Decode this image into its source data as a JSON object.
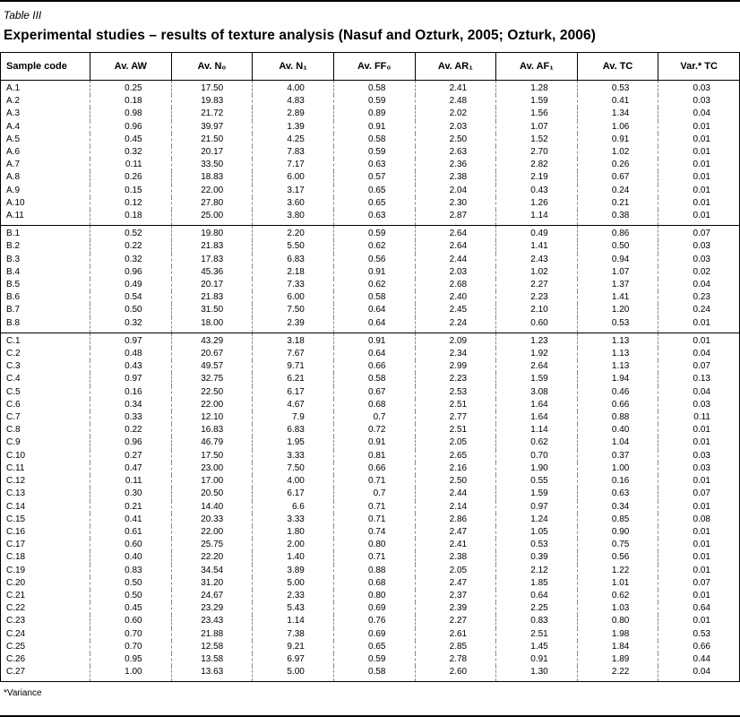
{
  "page": {
    "table_label": "Table III",
    "title": "Experimental studies – results of texture analysis (Nasuf and Ozturk, 2005; Ozturk, 2006)",
    "footnote": "*Variance"
  },
  "table": {
    "columns": [
      "Sample code",
      "Av. AW",
      "Av. N₀",
      "Av. N₁",
      "Av. FF₀",
      "Av. AR₁",
      "Av. AF₁",
      "Av. TC",
      "Var.* TC"
    ],
    "groups": [
      {
        "name": "A",
        "rows": [
          [
            "A.1",
            "0.25",
            "17.50",
            "4.00",
            "0.58",
            "2.41",
            "1.28",
            "0.53",
            "0.03"
          ],
          [
            "A.2",
            "0.18",
            "19.83",
            "4.83",
            "0.59",
            "2.48",
            "1.59",
            "0.41",
            "0.03"
          ],
          [
            "A.3",
            "0.98",
            "21.72",
            "2.89",
            "0.89",
            "2.02",
            "1.56",
            "1.34",
            "0.04"
          ],
          [
            "A.4",
            "0.96",
            "39.97",
            "1.39",
            "0.91",
            "2.03",
            "1.07",
            "1.06",
            "0.01"
          ],
          [
            "A.5",
            "0.45",
            "21.50",
            "4.25",
            "0.58",
            "2.50",
            "1.52",
            "0.91",
            "0.01"
          ],
          [
            "A.6",
            "0.32",
            "20.17",
            "7.83",
            "0.59",
            "2.63",
            "2.70",
            "1.02",
            "0.01"
          ],
          [
            "A.7",
            "0.11",
            "33.50",
            "7.17",
            "0.63",
            "2.36",
            "2.82",
            "0.26",
            "0.01"
          ],
          [
            "A.8",
            "0.26",
            "18.83",
            "6.00",
            "0.57",
            "2.38",
            "2.19",
            "0.67",
            "0.01"
          ],
          [
            "A.9",
            "0.15",
            "22.00",
            "3.17",
            "0.65",
            "2.04",
            "0.43",
            "0.24",
            "0.01"
          ],
          [
            "A.10",
            "0.12",
            "27.80",
            "3.60",
            "0.65",
            "2.30",
            "1.26",
            "0.21",
            "0.01"
          ],
          [
            "A.11",
            "0.18",
            "25.00",
            "3.80",
            "0.63",
            "2.87",
            "1.14",
            "0.38",
            "0.01"
          ]
        ]
      },
      {
        "name": "B",
        "rows": [
          [
            "B.1",
            "0.52",
            "19.80",
            "2.20",
            "0.59",
            "2.64",
            "0.49",
            "0.86",
            "0.07"
          ],
          [
            "B.2",
            "0.22",
            "21.83",
            "5.50",
            "0.62",
            "2.64",
            "1.41",
            "0.50",
            "0.03"
          ],
          [
            "B.3",
            "0.32",
            "17.83",
            "6.83",
            "0.56",
            "2.44",
            "2.43",
            "0.94",
            "0.03"
          ],
          [
            "B.4",
            "0.96",
            "45.36",
            "2.18",
            "0.91",
            "2.03",
            "1.02",
            "1.07",
            "0.02"
          ],
          [
            "B.5",
            "0.49",
            "20.17",
            "7.33",
            "0.62",
            "2.68",
            "2.27",
            "1.37",
            "0.04"
          ],
          [
            "B.6",
            "0.54",
            "21.83",
            "6.00",
            "0.58",
            "2.40",
            "2.23",
            "1.41",
            "0.23"
          ],
          [
            "B.7",
            "0.50",
            "31.50",
            "7.50",
            "0.64",
            "2.45",
            "2.10",
            "1.20",
            "0.24"
          ],
          [
            "B.8",
            "0.32",
            "18.00",
            "2.39",
            "0.64",
            "2.24",
            "0.60",
            "0.53",
            "0.01"
          ]
        ]
      },
      {
        "name": "C",
        "rows": [
          [
            "C.1",
            "0.97",
            "43.29",
            "3.18",
            "0.91",
            "2.09",
            "1.23",
            "1.13",
            "0.01"
          ],
          [
            "C.2",
            "0.48",
            "20.67",
            "7.67",
            "0.64",
            "2.34",
            "1.92",
            "1.13",
            "0.04"
          ],
          [
            "C.3",
            "0.43",
            "49.57",
            "9.71",
            "0.66",
            "2.99",
            "2.64",
            "1.13",
            "0.07"
          ],
          [
            "C.4",
            "0.97",
            "32.75",
            "6.21",
            "0.58",
            "2.23",
            "1.59",
            "1.94",
            "0.13"
          ],
          [
            "C.5",
            "0.16",
            "22.50",
            "6.17",
            "0.67",
            "2.53",
            "3.08",
            "0.46",
            "0.04"
          ],
          [
            "C.6",
            "0.34",
            "22.00",
            "4.67",
            "0.68",
            "2.51",
            "1.64",
            "0.66",
            "0.03"
          ],
          [
            "C.7",
            "0.33",
            "12.10",
            "7.9",
            "0.7",
            "2.77",
            "1.64",
            "0.88",
            "0.11"
          ],
          [
            "C.8",
            "0.22",
            "16.83",
            "6.83",
            "0.72",
            "2.51",
            "1.14",
            "0.40",
            "0.01"
          ],
          [
            "C.9",
            "0.96",
            "46.79",
            "1.95",
            "0.91",
            "2.05",
            "0.62",
            "1.04",
            "0.01"
          ],
          [
            "C.10",
            "0.27",
            "17.50",
            "3.33",
            "0.81",
            "2.65",
            "0.70",
            "0.37",
            "0.03"
          ],
          [
            "C.11",
            "0.47",
            "23.00",
            "7.50",
            "0.66",
            "2.16",
            "1.90",
            "1.00",
            "0.03"
          ],
          [
            "C.12",
            "0.11",
            "17.00",
            "4.00",
            "0.71",
            "2.50",
            "0.55",
            "0.16",
            "0.01"
          ],
          [
            "C.13",
            "0.30",
            "20.50",
            "6.17",
            "0.7",
            "2.44",
            "1.59",
            "0.63",
            "0.07"
          ],
          [
            "C.14",
            "0.21",
            "14.40",
            "6.6",
            "0.71",
            "2.14",
            "0.97",
            "0.34",
            "0.01"
          ],
          [
            "C.15",
            "0.41",
            "20.33",
            "3.33",
            "0.71",
            "2.86",
            "1.24",
            "0.85",
            "0.08"
          ],
          [
            "C.16",
            "0.61",
            "22.00",
            "1.80",
            "0.74",
            "2.47",
            "1.05",
            "0.90",
            "0.01"
          ],
          [
            "C.17",
            "0.60",
            "25.75",
            "2.00",
            "0.80",
            "2.41",
            "0.53",
            "0.75",
            "0.01"
          ],
          [
            "C.18",
            "0.40",
            "22.20",
            "1.40",
            "0.71",
            "2.38",
            "0.39",
            "0.56",
            "0.01"
          ],
          [
            "C.19",
            "0.83",
            "34.54",
            "3.89",
            "0.88",
            "2.05",
            "2.12",
            "1.22",
            "0.01"
          ],
          [
            "C.20",
            "0.50",
            "31.20",
            "5.00",
            "0.68",
            "2.47",
            "1.85",
            "1.01",
            "0.07"
          ],
          [
            "C.21",
            "0.50",
            "24.67",
            "2.33",
            "0.80",
            "2.37",
            "0.64",
            "0.62",
            "0.01"
          ],
          [
            "C.22",
            "0.45",
            "23.29",
            "5.43",
            "0.69",
            "2.39",
            "2.25",
            "1.03",
            "0.64"
          ],
          [
            "C.23",
            "0.60",
            "23.43",
            "1.14",
            "0.76",
            "2.27",
            "0.83",
            "0.80",
            "0.01"
          ],
          [
            "C.24",
            "0.70",
            "21.88",
            "7.38",
            "0.69",
            "2.61",
            "2.51",
            "1.98",
            "0.53"
          ],
          [
            "C.25",
            "0.70",
            "12.58",
            "9.21",
            "0.65",
            "2.85",
            "1.45",
            "1.84",
            "0.66"
          ],
          [
            "C.26",
            "0.95",
            "13.58",
            "6.97",
            "0.59",
            "2.78",
            "0.91",
            "1.89",
            "0.44"
          ],
          [
            "C.27",
            "1.00",
            "13.63",
            "5.00",
            "0.58",
            "2.60",
            "1.30",
            "2.22",
            "0.04"
          ]
        ]
      }
    ]
  }
}
